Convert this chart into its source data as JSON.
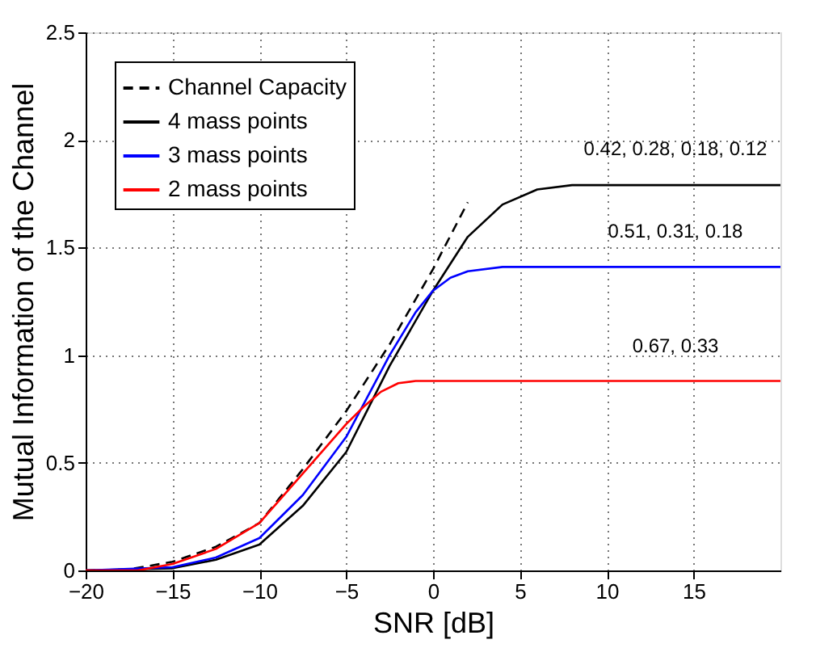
{
  "chart_data": {
    "type": "line",
    "xlabel": "SNR [dB]",
    "ylabel": "Mutual Information of the Channel",
    "xlim": [
      -20,
      20
    ],
    "ylim": [
      0,
      2.5
    ],
    "xticks": [
      -20,
      -15,
      -10,
      -5,
      0,
      5,
      10,
      15
    ],
    "yticks": [
      0,
      0.5,
      1,
      1.5,
      2,
      2.5
    ],
    "grid": true,
    "legend": "top left",
    "marker": "none",
    "series": [
      {
        "name": "Channel Capacity",
        "color": "#000000",
        "line_style": "dashed",
        "x": [
          -20,
          -17.5,
          -15,
          -12.5,
          -10,
          -7.5,
          -5,
          -2.5,
          0,
          2
        ],
        "values": [
          0,
          0.005,
          0.04,
          0.11,
          0.22,
          0.47,
          0.74,
          1.05,
          1.4,
          1.71
        ]
      },
      {
        "name": "4 mass points",
        "color": "#000000",
        "line_style": "solid",
        "x": [
          -20,
          -15,
          -12.5,
          -10,
          -7.5,
          -5,
          -2.5,
          0,
          2,
          4,
          6,
          8,
          20
        ],
        "values": [
          0,
          0.01,
          0.05,
          0.12,
          0.3,
          0.55,
          0.95,
          1.3,
          1.55,
          1.7,
          1.77,
          1.79,
          1.79
        ]
      },
      {
        "name": "3 mass points",
        "color": "#0000ff",
        "line_style": "solid",
        "x": [
          -20,
          -15,
          -12.5,
          -10,
          -7.5,
          -5,
          -2.5,
          -1,
          0,
          1,
          2,
          4,
          20
        ],
        "values": [
          0,
          0.015,
          0.06,
          0.15,
          0.35,
          0.62,
          1.0,
          1.2,
          1.3,
          1.36,
          1.39,
          1.41,
          1.41
        ]
      },
      {
        "name": "2 mass points",
        "color": "#ff0000",
        "line_style": "solid",
        "x": [
          -20,
          -17,
          -15,
          -12.5,
          -10,
          -7.5,
          -5,
          -4,
          -3,
          -2,
          -1,
          20
        ],
        "values": [
          0,
          0,
          0.03,
          0.1,
          0.22,
          0.45,
          0.68,
          0.76,
          0.83,
          0.87,
          0.88,
          0.88
        ]
      }
    ],
    "annotations": [
      "0.42, 0.28, 0.18, 0.12",
      "0.51, 0.31, 0.18",
      "0.67, 0.33"
    ]
  }
}
